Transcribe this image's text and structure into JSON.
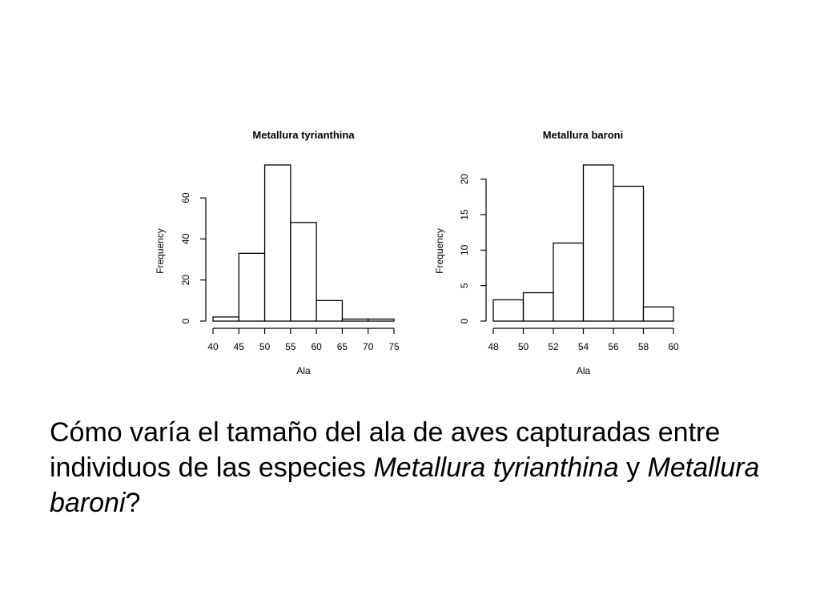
{
  "chart_data": [
    {
      "type": "bar",
      "subtype": "histogram",
      "title": "Metallura tyrianthina",
      "xlabel": "Ala",
      "ylabel": "Frequency",
      "bin_edges": [
        40,
        45,
        50,
        55,
        60,
        65,
        70,
        75
      ],
      "values": [
        2,
        33,
        76,
        48,
        10,
        1,
        1
      ],
      "xticks": [
        "40",
        "45",
        "50",
        "55",
        "60",
        "65",
        "70",
        "75"
      ],
      "yticks": [
        "0",
        "20",
        "40",
        "60"
      ],
      "xlim": [
        40,
        75
      ],
      "ylim": [
        0,
        60
      ],
      "grid": false
    },
    {
      "type": "bar",
      "subtype": "histogram",
      "title": "Metallura baroni",
      "xlabel": "Ala",
      "ylabel": "Frequency",
      "bin_edges": [
        48,
        50,
        52,
        54,
        56,
        58,
        60
      ],
      "values": [
        3,
        4,
        11,
        22,
        19,
        2
      ],
      "xticks": [
        "48",
        "50",
        "52",
        "54",
        "56",
        "58",
        "60"
      ],
      "yticks": [
        "0",
        "5",
        "10",
        "15",
        "20"
      ],
      "xlim": [
        48,
        60
      ],
      "ylim": [
        0,
        20
      ],
      "grid": false
    }
  ],
  "caption": {
    "part1": "Cómo varía el tamaño del ala de aves capturadas entre individuos de las especies ",
    "species1": "Metallura tyrianthina",
    "part2": " y ",
    "species2": "Metallura baroni",
    "part3": "?"
  },
  "colors": {
    "bar_fill": "#ffffff",
    "bar_stroke": "#000000",
    "background": "#ffffff"
  }
}
